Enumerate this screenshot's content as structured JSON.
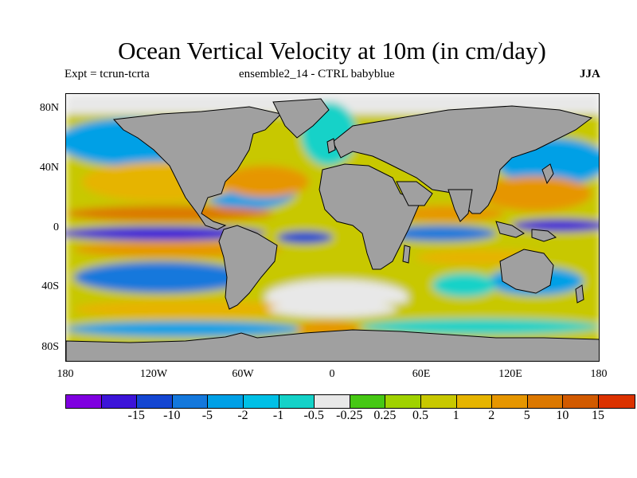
{
  "title": "Ocean Vertical Velocity at 10m (in cm/day)",
  "subtitle_left": "Expt = tcrun-tcrta",
  "subtitle_center": "ensemble2_14 - CTRL babyblue",
  "subtitle_right": "JJA",
  "lat_labels": [
    "80N",
    "40N",
    "0",
    "40S",
    "80S"
  ],
  "lon_labels": [
    "180",
    "120W",
    "60W",
    "0",
    "60E",
    "120E",
    "180"
  ],
  "land_color": "#a0a0a0",
  "colorbar": {
    "colors": [
      "#7f00e0",
      "#3c14d8",
      "#1446d2",
      "#1478dc",
      "#00a0e6",
      "#00c0e6",
      "#14d2c8",
      "#e8e8e8",
      "#46c814",
      "#a0d200",
      "#c8c800",
      "#e6b400",
      "#e69600",
      "#dc7800",
      "#d25a00",
      "#dc3200"
    ],
    "labels": [
      "-15",
      "-10",
      "-5",
      "-2",
      "-1",
      "-0.5",
      "-0.25",
      "0.25",
      "0.5",
      "1",
      "2",
      "5",
      "10",
      "15"
    ]
  }
}
